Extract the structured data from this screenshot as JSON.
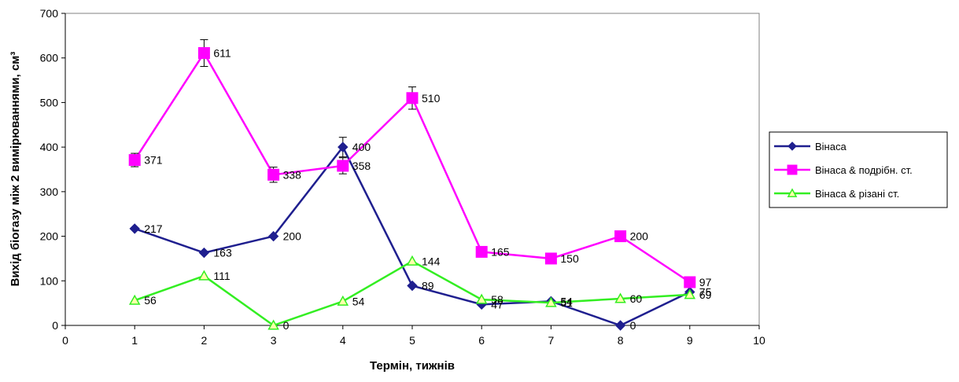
{
  "chart_data": {
    "type": "line",
    "title": "",
    "xlabel": "Термін, тижнів",
    "ylabel": "Вихід біогазу між 2 вимірюваннями, см³",
    "xlim": [
      0,
      10
    ],
    "ylim": [
      0,
      700
    ],
    "x_ticks": [
      0,
      1,
      2,
      3,
      4,
      5,
      6,
      7,
      8,
      9,
      10
    ],
    "y_ticks": [
      0,
      100,
      200,
      300,
      400,
      500,
      600,
      700
    ],
    "x": [
      1,
      2,
      3,
      4,
      5,
      6,
      7,
      8,
      9
    ],
    "grid": false,
    "legend_position": "right",
    "series": [
      {
        "name": "Вінаса",
        "color": "#1f1f8f",
        "marker": "diamond",
        "values": [
          217,
          163,
          200,
          400,
          89,
          47,
          54,
          0,
          75
        ],
        "labels": [
          "217",
          "163",
          "200",
          "400",
          "89",
          "47",
          "54",
          "0",
          "75"
        ],
        "errors": [
          0,
          0,
          0,
          22,
          0,
          0,
          0,
          0,
          0
        ]
      },
      {
        "name": "Вінаса & подрібн. ст.",
        "color": "#ff00ff",
        "marker": "square",
        "values": [
          371,
          611,
          338,
          358,
          510,
          165,
          150,
          200,
          97
        ],
        "labels": [
          "371",
          "611",
          "338",
          "358",
          "510",
          "165",
          "150",
          "200",
          "97"
        ],
        "errors": [
          15,
          30,
          17,
          18,
          25,
          0,
          0,
          0,
          0
        ]
      },
      {
        "name": "Вінаса & різані ст.",
        "color": "#33ee22",
        "marker": "triangle",
        "values": [
          56,
          111,
          0,
          54,
          144,
          58,
          51,
          60,
          69
        ],
        "labels": [
          "56",
          "111",
          "0",
          "54",
          "144",
          "58",
          "51",
          "60",
          "69"
        ],
        "errors": [
          0,
          0,
          0,
          0,
          0,
          0,
          0,
          0,
          0
        ]
      }
    ]
  }
}
